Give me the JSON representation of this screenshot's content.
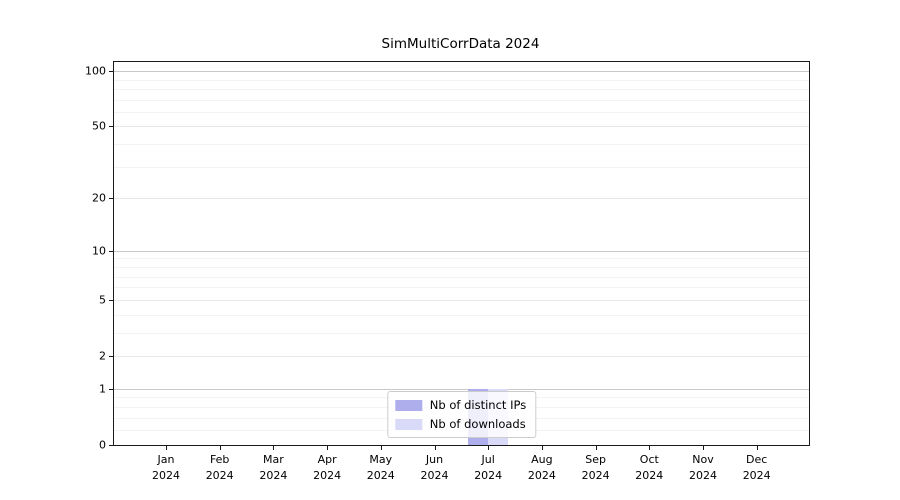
{
  "chart_data": {
    "type": "bar",
    "title": "SimMultiCorrData 2024",
    "x": {
      "months": [
        "Jan",
        "Feb",
        "Mar",
        "Apr",
        "May",
        "Jun",
        "Jul",
        "Aug",
        "Sep",
        "Oct",
        "Nov",
        "Dec"
      ],
      "year": "2024"
    },
    "series": [
      {
        "name": "Nb of distinct IPs",
        "color": "#aeaeec",
        "values": [
          0,
          0,
          0,
          0,
          0,
          0,
          1,
          0,
          0,
          0,
          0,
          0
        ]
      },
      {
        "name": "Nb of downloads",
        "color": "#d9d9f8",
        "values": [
          0,
          0,
          0,
          0,
          0,
          0,
          1,
          0,
          0,
          0,
          0,
          0
        ]
      }
    ],
    "y_axis": {
      "scale": "log(1+y)",
      "ylim": [
        0,
        112
      ],
      "major_tick_values": [
        100,
        50,
        20,
        10,
        5,
        2,
        1,
        0
      ],
      "decade_gridline_values": [
        1,
        10,
        100
      ],
      "minor_gridline_values": [
        0.2,
        0.4,
        0.6,
        0.8,
        3,
        4,
        6,
        7,
        8,
        9,
        30,
        40,
        60,
        70,
        80,
        90
      ]
    },
    "legend": {
      "position": "lower center"
    },
    "grid": "horizontal",
    "colors": {
      "spine": "#1a1a1a",
      "gridline_decade": "#c9c9c9",
      "gridline_major": "#e7e7e7",
      "gridline_minor": "#f3f3f3"
    }
  }
}
